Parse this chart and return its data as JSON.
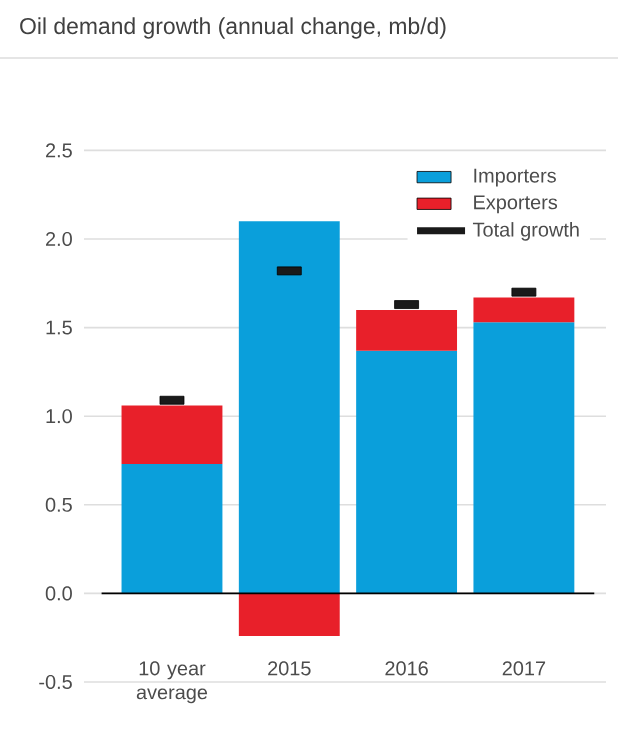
{
  "chart_data": {
    "type": "bar",
    "title": "Oil demand growth (annual change, mb/d)",
    "categories": [
      "10 year average",
      "2015",
      "2016",
      "2017"
    ],
    "stacked": true,
    "series": [
      {
        "name": "Importers",
        "type": "bar",
        "color": "#0a9fdb",
        "values": [
          0.73,
          2.1,
          1.37,
          1.53
        ]
      },
      {
        "name": "Exporters",
        "type": "bar",
        "color": "#e8202a",
        "values": [
          0.33,
          -0.24,
          0.23,
          0.14
        ]
      },
      {
        "name": "Total growth",
        "type": "scatter",
        "color": "#1a1a1a",
        "values": [
          1.09,
          1.82,
          1.63,
          1.7
        ]
      }
    ],
    "ylim": [
      -0.5,
      2.5
    ],
    "yticks": [
      -0.5,
      {
        "value": 0,
        "label": "0.0"
      },
      0.5,
      {
        "value": 1,
        "label": "1.0"
      },
      1.5,
      {
        "value": 2,
        "label": "2.0"
      },
      2.5
    ],
    "grid": "y",
    "legend": "top right"
  }
}
